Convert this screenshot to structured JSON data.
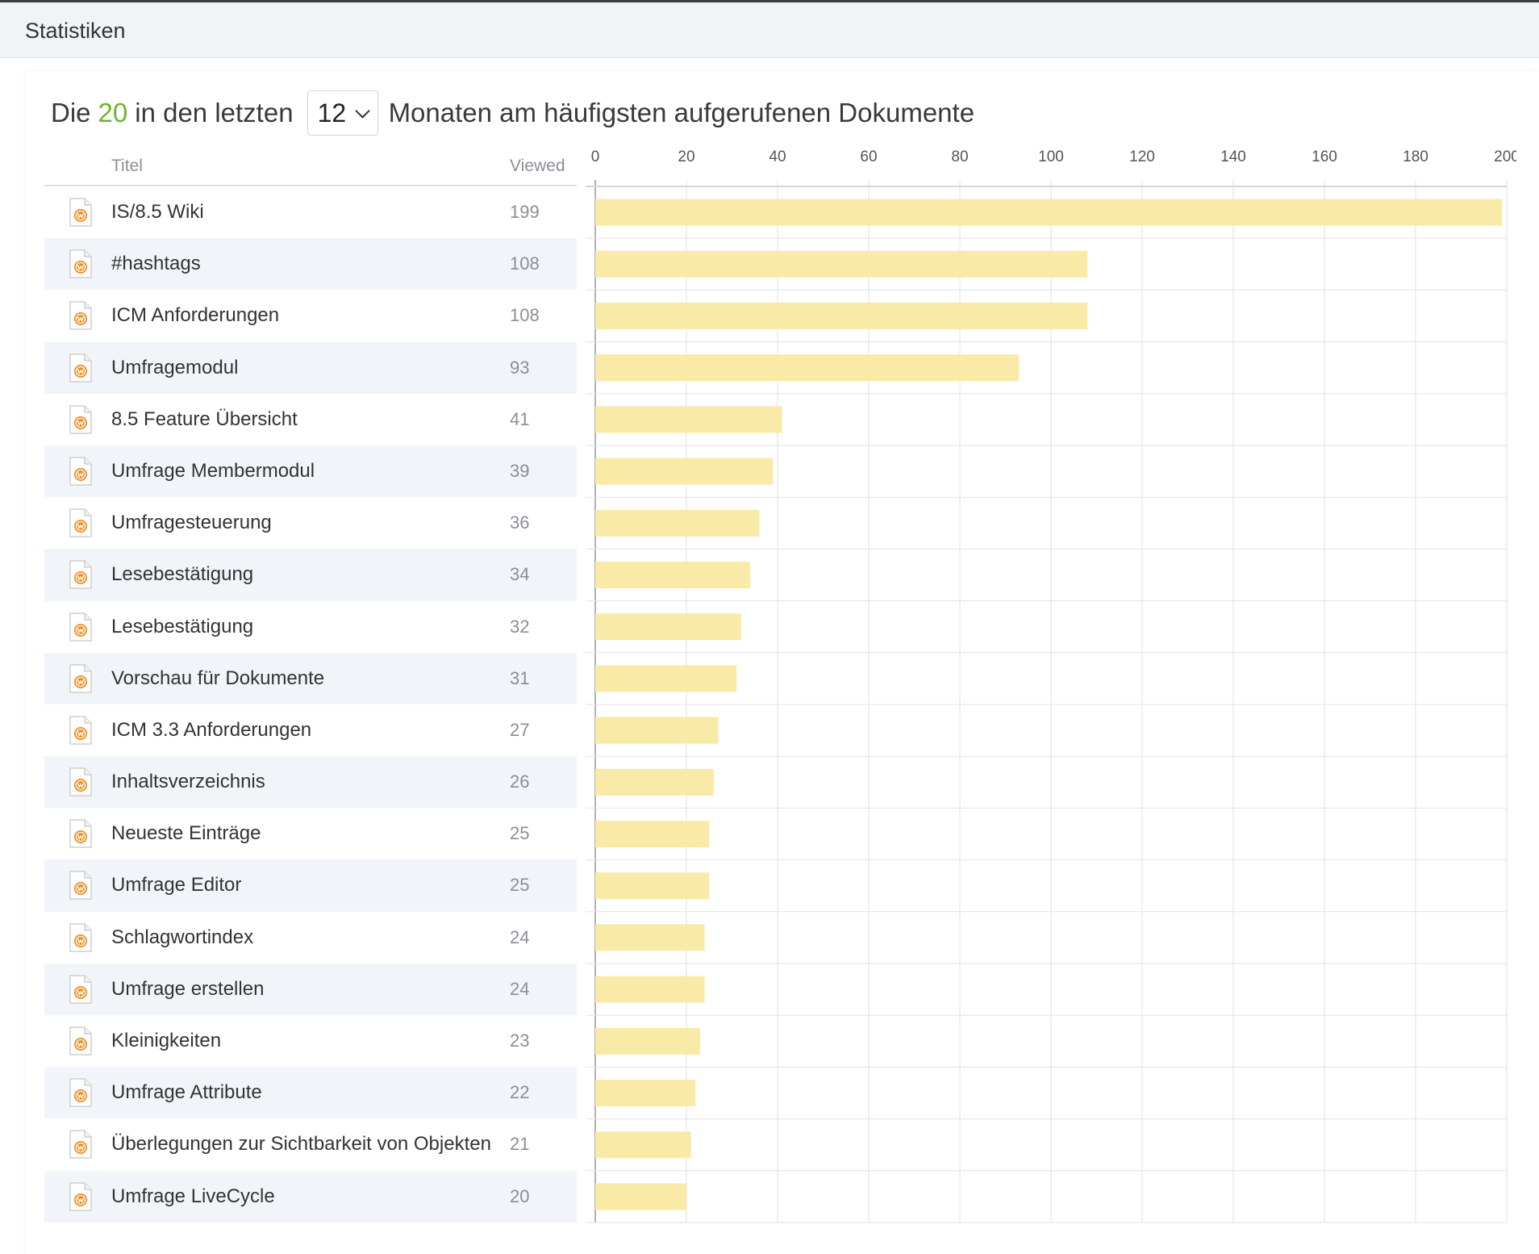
{
  "header": {
    "title": "Statistiken"
  },
  "heading": {
    "prefix": "Die",
    "count": "20",
    "middle": "in den letzten",
    "suffix": "Monaten am häufigsten aufgerufenen Dokumente",
    "months_selected": "12"
  },
  "table": {
    "col_title": "Titel",
    "col_viewed": "Viewed",
    "icon": "wiki-document-icon",
    "rows": [
      {
        "title": "IS/8.5 Wiki",
        "views": "199"
      },
      {
        "title": "#hashtags",
        "views": "108"
      },
      {
        "title": "ICM Anforderungen",
        "views": "108"
      },
      {
        "title": "Umfragemodul",
        "views": "93"
      },
      {
        "title": "8.5 Feature Übersicht",
        "views": "41"
      },
      {
        "title": "Umfrage Membermodul",
        "views": "39"
      },
      {
        "title": "Umfragesteuerung",
        "views": "36"
      },
      {
        "title": "Lesebestätigung",
        "views": "34"
      },
      {
        "title": "Lesebestätigung",
        "views": "32"
      },
      {
        "title": "Vorschau für Dokumente",
        "views": "31"
      },
      {
        "title": "ICM 3.3 Anforderungen",
        "views": "27"
      },
      {
        "title": "Inhaltsverzeichnis",
        "views": "26"
      },
      {
        "title": "Neueste Einträge",
        "views": "25"
      },
      {
        "title": "Umfrage Editor",
        "views": "25"
      },
      {
        "title": "Schlagwortindex",
        "views": "24"
      },
      {
        "title": "Umfrage erstellen",
        "views": "24"
      },
      {
        "title": "Kleinigkeiten",
        "views": "23"
      },
      {
        "title": "Umfrage Attribute",
        "views": "22"
      },
      {
        "title": "Überlegungen zur Sichtbarkeit von Objekten",
        "views": "21"
      },
      {
        "title": "Umfrage LiveCycle",
        "views": "20"
      }
    ]
  },
  "colors": {
    "bar": "#f9eaa7",
    "count_highlight": "#6bb52a",
    "icon_orange": "#f28a1c"
  },
  "chart_data": {
    "type": "bar",
    "orientation": "horizontal",
    "categories": [
      "IS/8.5 Wiki",
      "#hashtags",
      "ICM Anforderungen",
      "Umfragemodul",
      "8.5 Feature Übersicht",
      "Umfrage Membermodul",
      "Umfragesteuerung",
      "Lesebestätigung",
      "Lesebestätigung",
      "Vorschau für Dokumente",
      "ICM 3.3 Anforderungen",
      "Inhaltsverzeichnis",
      "Neueste Einträge",
      "Umfrage Editor",
      "Schlagwortindex",
      "Umfrage erstellen",
      "Kleinigkeiten",
      "Umfrage Attribute",
      "Überlegungen zur Sichtbarkeit von Objekten",
      "Umfrage LiveCycle"
    ],
    "values": [
      199,
      108,
      108,
      93,
      41,
      39,
      36,
      34,
      32,
      31,
      27,
      26,
      25,
      25,
      24,
      24,
      23,
      22,
      21,
      20
    ],
    "xlim": [
      0,
      200
    ],
    "xticks": [
      0,
      20,
      40,
      60,
      80,
      100,
      120,
      140,
      160,
      180,
      200
    ],
    "axis_position": "top",
    "grid": true
  }
}
